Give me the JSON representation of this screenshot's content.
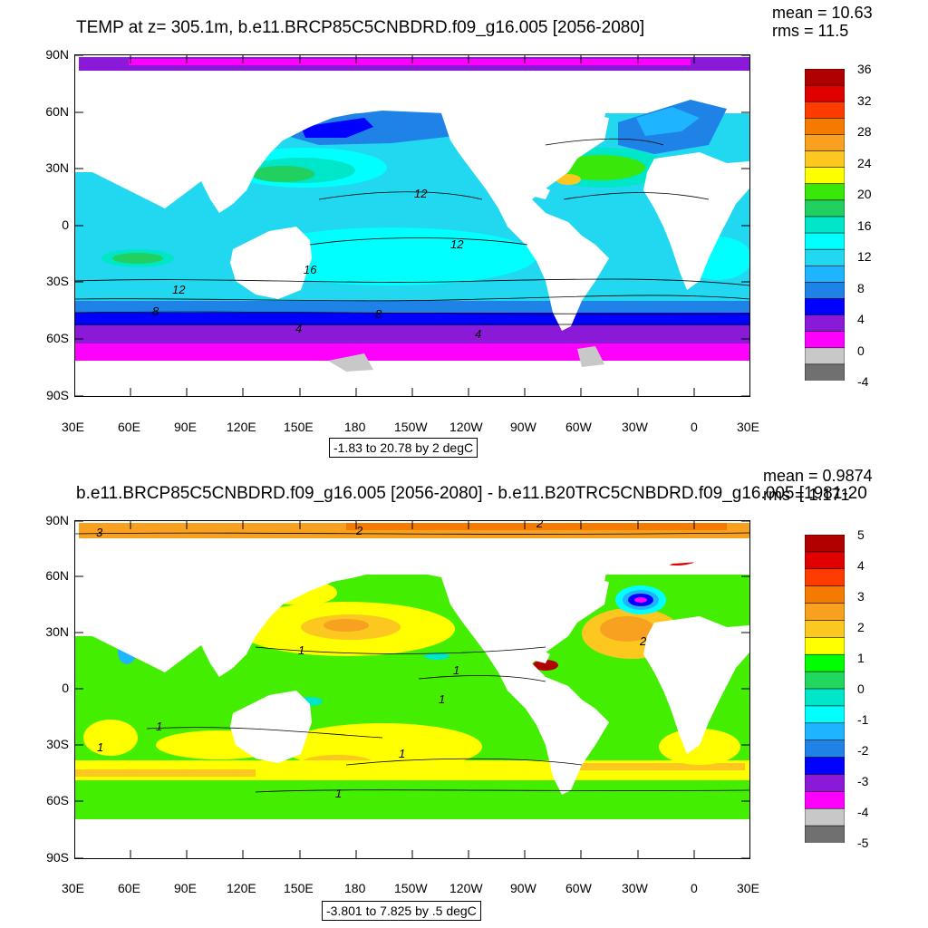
{
  "panels": [
    {
      "title": "TEMP at z= 305.1m, b.e11.BRCP85C5CNBDRD.f09_g16.005 [2056-2080]",
      "mean_text": "mean = 10.63",
      "rms_text": "rms = 11.5",
      "range_text": "-1.83 to 20.78 by 2 degC",
      "colorbar": {
        "labels": [
          "36",
          "32",
          "28",
          "24",
          "20",
          "16",
          "12",
          "8",
          "4",
          "0",
          "-4"
        ],
        "colors": [
          "#b00000",
          "#e00000",
          "#ff3c00",
          "#f47a00",
          "#f8a020",
          "#fcc820",
          "#ffff00",
          "#39e80a",
          "#22d060",
          "#00e6c8",
          "#00ffff",
          "#22d7f0",
          "#1fb4ff",
          "#1e82e6",
          "#0000ff",
          "#8a1ad8",
          "#ff00ff",
          "#c8c8c8",
          "#707070"
        ]
      },
      "contour_labels": [
        "12",
        "12",
        "12",
        "16",
        "8",
        "8",
        "4",
        "4"
      ]
    },
    {
      "title": "b.e11.BRCP85C5CNBDRD.f09_g16.005 [2056-2080] - b.e11.B20TRC5CNBDRD.f09_g16.005 [1981-20",
      "mean_text": "mean = 0.9874",
      "rms_text": "rms = 1.171",
      "range_text": "-3.801 to 7.825 by .5 degC",
      "colorbar": {
        "labels": [
          "5",
          "4",
          "3",
          "2",
          "1",
          "0",
          "-1",
          "-2",
          "-3",
          "-4",
          "-5"
        ],
        "colors": [
          "#b00000",
          "#e00000",
          "#ff3c00",
          "#f47a00",
          "#f8a020",
          "#fcc820",
          "#ffff00",
          "#00ff00",
          "#22d760",
          "#00e6c8",
          "#00ffff",
          "#1fb4ff",
          "#1e82e6",
          "#0000ff",
          "#8a1ad8",
          "#ff00ff",
          "#c8c8c8",
          "#707070"
        ]
      },
      "contour_labels": [
        "3",
        "2",
        "2",
        "1",
        "1",
        "1",
        "1",
        "1",
        "1",
        "1",
        "2"
      ]
    }
  ],
  "axes": {
    "lat_labels": [
      "90N",
      "60N",
      "30N",
      "0",
      "30S",
      "60S",
      "90S"
    ],
    "lon_labels": [
      "30E",
      "60E",
      "90E",
      "120E",
      "150E",
      "180",
      "150W",
      "120W",
      "90W",
      "60W",
      "30W",
      "0",
      "30E"
    ]
  }
}
